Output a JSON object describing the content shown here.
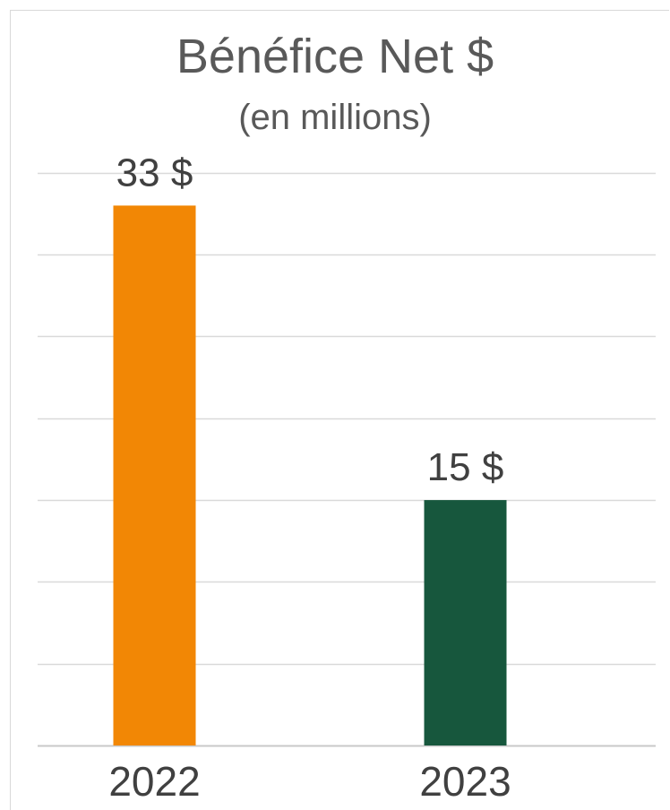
{
  "chart_data": {
    "type": "bar",
    "title": "Bénéfice Net $",
    "subtitle": "(en millions)",
    "categories": [
      "2022",
      "2023"
    ],
    "values": [
      33,
      15
    ],
    "data_labels": [
      "33 $",
      "15 $"
    ],
    "colors": [
      "#f28705",
      "#17573d"
    ],
    "ylim": [
      0,
      35
    ],
    "grid": true,
    "grid_step": 5,
    "legend": "none"
  }
}
